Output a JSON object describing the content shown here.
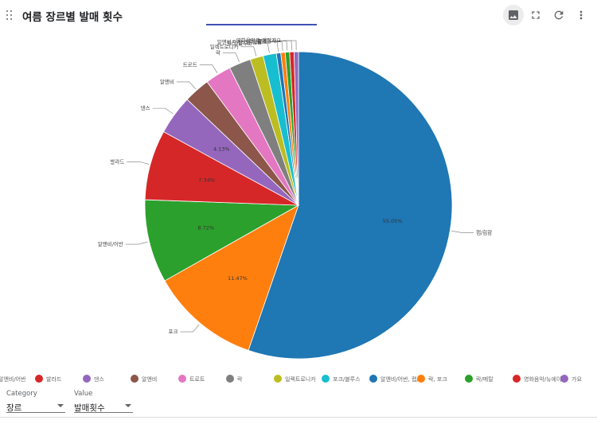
{
  "header": {
    "title": "여름 장르별 발매 횟수"
  },
  "toolbar": {
    "icons": [
      "image-icon",
      "fullscreen-icon",
      "refresh-icon",
      "more-vert-icon"
    ]
  },
  "chart_data": {
    "type": "pie",
    "labels": [
      "랩/힙합",
      "포크",
      "알앤비/어반",
      "발라드",
      "댄스",
      "알앤비",
      "트로트",
      "락",
      "일렉트로니카",
      "포크/블루스",
      "알앤비/어반, 랩/힙합",
      "락, 포크",
      "락/메탈",
      "영화음악/뉴에이지",
      "가요"
    ],
    "values": [
      55.05,
      11.47,
      8.72,
      7.34,
      4.13,
      2.75,
      2.75,
      2.29,
      1.38,
      1.38,
      0.46,
      0.46,
      0.46,
      0.46,
      0.46
    ],
    "percent_labels": [
      "55.05%",
      "11.47%",
      "8.72%",
      "7.34%",
      "4.13%"
    ],
    "colors": [
      "#1f77b4",
      "#ff7f0e",
      "#2ca02c",
      "#d62728",
      "#9467bd",
      "#8c564b",
      "#e377c2",
      "#7f7f7f",
      "#bcbd22",
      "#17becf",
      "#1f77b4",
      "#ff7f0e",
      "#2ca02c",
      "#d62728",
      "#9467bd"
    ],
    "legend_position": "bottom"
  },
  "legend": {
    "items": [
      {
        "label": "알앤비/어반",
        "color": ""
      },
      {
        "label": "발라드",
        "color": "#d62728"
      },
      {
        "label": "댄스",
        "color": "#9467bd"
      },
      {
        "label": "알앤비",
        "color": "#8c564b"
      },
      {
        "label": "트로트",
        "color": "#e377c2"
      },
      {
        "label": "락",
        "color": "#7f7f7f"
      },
      {
        "label": "일렉트로니카",
        "color": "#bcbd22"
      },
      {
        "label": "포크/블루스",
        "color": "#17becf"
      },
      {
        "label": "알앤비/어반, 랩/",
        "color": "#1f77b4"
      },
      {
        "label": "락, 포크",
        "color": "#ff7f0e"
      },
      {
        "label": "락/메탈",
        "color": "#2ca02c"
      },
      {
        "label": "영화음악/뉴에이",
        "color": "#d62728"
      },
      {
        "label": "가요",
        "color": "#9467bd"
      }
    ]
  },
  "controls": {
    "category": {
      "label": "Category",
      "value": "장르"
    },
    "value": {
      "label": "Value",
      "value": "발매횟수"
    }
  }
}
